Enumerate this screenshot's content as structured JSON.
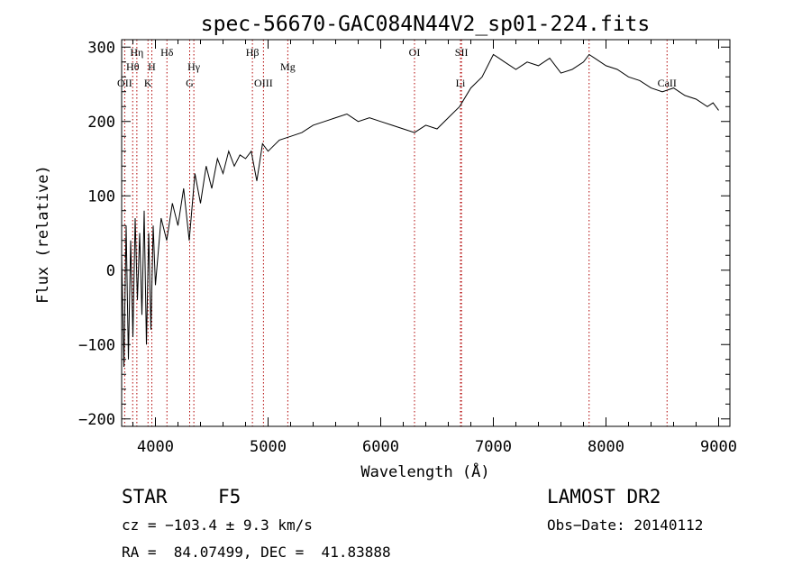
{
  "chart_data": {
    "type": "line",
    "title": "spec-56670-GAC084N44V2_sp01-224.fits",
    "xlabel": "Wavelength (Å)",
    "ylabel": "Flux (relative)",
    "xlim": [
      3700,
      9100
    ],
    "ylim": [
      -210,
      310
    ],
    "xticks": [
      4000,
      5000,
      6000,
      7000,
      8000,
      9000
    ],
    "yticks": [
      -200,
      -100,
      0,
      100,
      200,
      300
    ],
    "grid": false,
    "series": [
      {
        "color": "#000000",
        "x": [
          3700,
          3720,
          3740,
          3760,
          3780,
          3800,
          3820,
          3840,
          3860,
          3880,
          3900,
          3920,
          3940,
          3960,
          3980,
          4000,
          4050,
          4100,
          4150,
          4200,
          4250,
          4300,
          4350,
          4400,
          4450,
          4500,
          4550,
          4600,
          4650,
          4700,
          4750,
          4800,
          4850,
          4900,
          4950,
          5000,
          5100,
          5200,
          5300,
          5400,
          5500,
          5600,
          5700,
          5800,
          5900,
          6000,
          6100,
          6200,
          6300,
          6400,
          6500,
          6600,
          6700,
          6800,
          6900,
          7000,
          7050,
          7100,
          7200,
          7300,
          7400,
          7500,
          7600,
          7700,
          7800,
          7850,
          7900,
          8000,
          8100,
          8200,
          8300,
          8400,
          8500,
          8600,
          8700,
          8800,
          8900,
          8950,
          9000
        ],
        "y": [
          20,
          -130,
          60,
          -120,
          40,
          -90,
          70,
          -40,
          50,
          -60,
          80,
          -100,
          50,
          -80,
          60,
          -20,
          70,
          40,
          90,
          60,
          110,
          40,
          130,
          90,
          140,
          110,
          150,
          130,
          160,
          140,
          155,
          150,
          160,
          120,
          170,
          160,
          175,
          180,
          185,
          195,
          200,
          205,
          210,
          200,
          205,
          200,
          195,
          190,
          185,
          195,
          190,
          205,
          220,
          245,
          260,
          290,
          285,
          280,
          270,
          280,
          275,
          285,
          265,
          270,
          280,
          290,
          285,
          275,
          270,
          260,
          255,
          245,
          240,
          245,
          235,
          230,
          220,
          225,
          215
        ]
      }
    ],
    "line_markers": [
      {
        "name": "OII",
        "x": 3727,
        "row": 3
      },
      {
        "name": "Hθ",
        "x": 3798,
        "row": 2
      },
      {
        "name": "Hη",
        "x": 3835,
        "row": 1
      },
      {
        "name": "K",
        "x": 3934,
        "row": 3
      },
      {
        "name": "H",
        "x": 3968,
        "row": 2
      },
      {
        "name": "Hδ",
        "x": 4102,
        "row": 1
      },
      {
        "name": "G",
        "x": 4304,
        "row": 3
      },
      {
        "name": "Hγ",
        "x": 4341,
        "row": 2
      },
      {
        "name": "Hβ",
        "x": 4861,
        "row": 1
      },
      {
        "name": "OIII",
        "x": 4959,
        "row": 3
      },
      {
        "name": "Mg",
        "x": 5175,
        "row": 2
      },
      {
        "name": "OI",
        "x": 6300,
        "row": 1
      },
      {
        "name": "Li",
        "x": 6708,
        "row": 3
      },
      {
        "name": "SII",
        "x": 6717,
        "row": 1
      },
      {
        "name": "",
        "x": 7850,
        "row": 0
      },
      {
        "name": "CaII",
        "x": 8542,
        "row": 3
      }
    ]
  },
  "info": {
    "object_type": "STAR",
    "subclass": "F5",
    "survey": "LAMOST DR2",
    "cz": "cz = −103.4 ± 9.3 km/s",
    "obs_date": "Obs−Date: 20140112",
    "coords": "RA =  84.07499, DEC =  41.83888"
  }
}
